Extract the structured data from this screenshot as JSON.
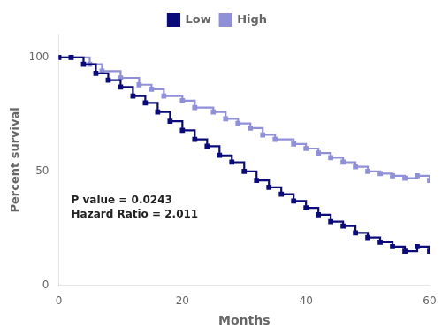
{
  "chart_data": {
    "type": "line",
    "xlabel": "Months",
    "ylabel": "Percent survival",
    "annotation": "P value = 0.0243\nHazard Ratio = 2.011",
    "xlim": [
      0,
      60
    ],
    "xticks": [
      0,
      20,
      40,
      60
    ],
    "ylim": [
      0,
      110
    ],
    "yticks": [
      0,
      50,
      100
    ],
    "grid": false,
    "legend": "top",
    "series": [
      {
        "name": "Low",
        "color": "#0a0a7a",
        "marker": "square",
        "line_style": "step",
        "x": [
          0,
          2,
          4,
          6,
          8,
          10,
          12,
          14,
          16,
          18,
          20,
          22,
          24,
          26,
          28,
          30,
          32,
          34,
          36,
          38,
          40,
          42,
          44,
          46,
          48,
          50,
          52,
          54,
          56,
          58,
          60
        ],
        "values": [
          100,
          100,
          97,
          93,
          90,
          87,
          83,
          80,
          76,
          72,
          68,
          64,
          61,
          57,
          54,
          50,
          46,
          43,
          40,
          37,
          34,
          31,
          28,
          26,
          23,
          21,
          19,
          17,
          15,
          17,
          15
        ]
      },
      {
        "name": "High",
        "color": "#9090d8",
        "marker": "square",
        "line_style": "step",
        "x": [
          0,
          2,
          5,
          7,
          10,
          13,
          15,
          17,
          20,
          22,
          25,
          27,
          29,
          31,
          33,
          35,
          38,
          40,
          42,
          44,
          46,
          48,
          50,
          52,
          54,
          56,
          58,
          60
        ],
        "values": [
          100,
          100,
          97,
          94,
          91,
          88,
          86,
          83,
          81,
          78,
          76,
          73,
          71,
          69,
          66,
          64,
          62,
          60,
          58,
          56,
          54,
          52,
          50,
          49,
          48,
          47,
          48,
          46
        ]
      }
    ]
  }
}
